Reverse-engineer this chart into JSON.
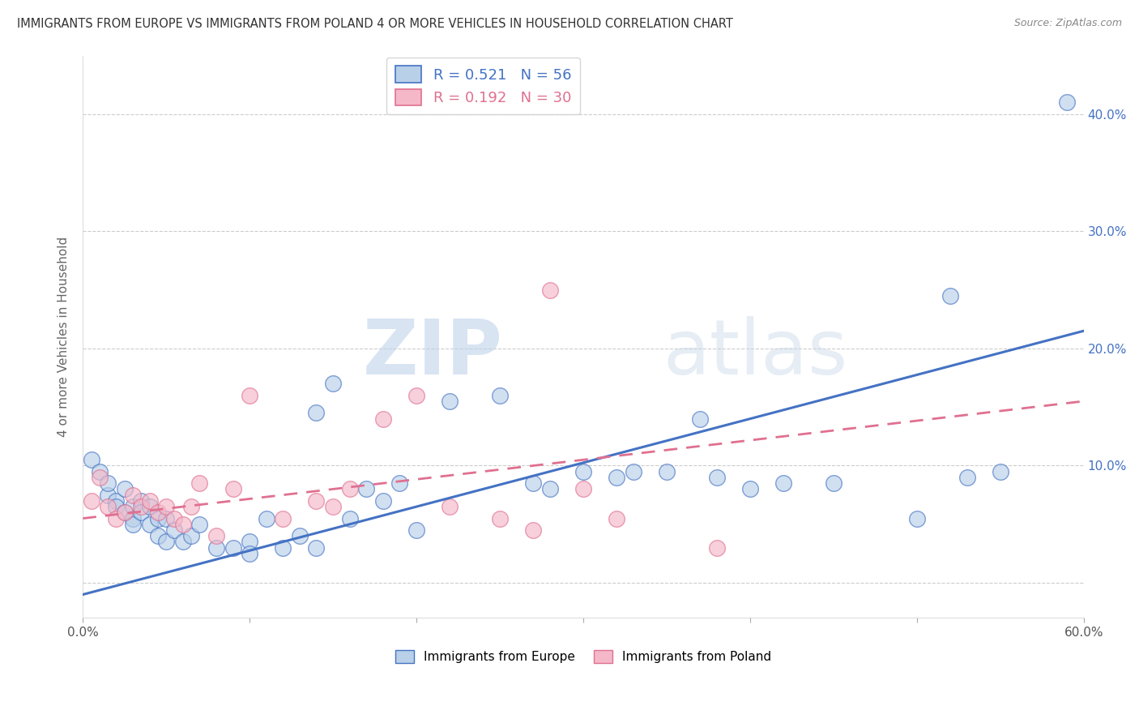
{
  "title": "IMMIGRANTS FROM EUROPE VS IMMIGRANTS FROM POLAND 4 OR MORE VEHICLES IN HOUSEHOLD CORRELATION CHART",
  "source": "Source: ZipAtlas.com",
  "ylabel": "4 or more Vehicles in Household",
  "legend_label_blue": "Immigrants from Europe",
  "legend_label_pink": "Immigrants from Poland",
  "r_blue": "0.521",
  "n_blue": "56",
  "r_pink": "0.192",
  "n_pink": "30",
  "color_blue": "#b8d0e8",
  "color_blue_line": "#4472c4",
  "color_pink": "#f4b8c8",
  "color_pink_line": "#e07090",
  "xlim": [
    0.0,
    0.6
  ],
  "ylim": [
    -0.03,
    0.45
  ],
  "yticks": [
    0.0,
    0.1,
    0.2,
    0.3,
    0.4
  ],
  "ytick_labels": [
    "",
    "10.0%",
    "20.0%",
    "30.0%",
    "40.0%"
  ],
  "blue_x": [
    0.005,
    0.01,
    0.015,
    0.015,
    0.02,
    0.02,
    0.025,
    0.025,
    0.03,
    0.03,
    0.03,
    0.035,
    0.035,
    0.04,
    0.04,
    0.045,
    0.045,
    0.05,
    0.05,
    0.055,
    0.06,
    0.065,
    0.07,
    0.08,
    0.09,
    0.1,
    0.1,
    0.11,
    0.12,
    0.13,
    0.14,
    0.14,
    0.15,
    0.16,
    0.17,
    0.18,
    0.19,
    0.2,
    0.22,
    0.25,
    0.27,
    0.28,
    0.3,
    0.32,
    0.33,
    0.35,
    0.37,
    0.38,
    0.4,
    0.42,
    0.45,
    0.5,
    0.52,
    0.53,
    0.55,
    0.59
  ],
  "blue_y": [
    0.105,
    0.095,
    0.075,
    0.085,
    0.07,
    0.065,
    0.06,
    0.08,
    0.065,
    0.055,
    0.05,
    0.07,
    0.06,
    0.05,
    0.065,
    0.055,
    0.04,
    0.055,
    0.035,
    0.045,
    0.035,
    0.04,
    0.05,
    0.03,
    0.03,
    0.035,
    0.025,
    0.055,
    0.03,
    0.04,
    0.03,
    0.145,
    0.17,
    0.055,
    0.08,
    0.07,
    0.085,
    0.045,
    0.155,
    0.16,
    0.085,
    0.08,
    0.095,
    0.09,
    0.095,
    0.095,
    0.14,
    0.09,
    0.08,
    0.085,
    0.085,
    0.055,
    0.245,
    0.09,
    0.095,
    0.41
  ],
  "pink_x": [
    0.005,
    0.01,
    0.015,
    0.02,
    0.025,
    0.03,
    0.035,
    0.04,
    0.045,
    0.05,
    0.055,
    0.06,
    0.065,
    0.07,
    0.08,
    0.09,
    0.1,
    0.12,
    0.14,
    0.15,
    0.16,
    0.18,
    0.2,
    0.22,
    0.25,
    0.27,
    0.28,
    0.3,
    0.32,
    0.38
  ],
  "pink_y": [
    0.07,
    0.09,
    0.065,
    0.055,
    0.06,
    0.075,
    0.065,
    0.07,
    0.06,
    0.065,
    0.055,
    0.05,
    0.065,
    0.085,
    0.04,
    0.08,
    0.16,
    0.055,
    0.07,
    0.065,
    0.08,
    0.14,
    0.16,
    0.065,
    0.055,
    0.045,
    0.25,
    0.08,
    0.055,
    0.03
  ],
  "blue_line_x": [
    0.0,
    0.6
  ],
  "blue_line_y": [
    -0.01,
    0.215
  ],
  "pink_line_x": [
    0.0,
    0.6
  ],
  "pink_line_y": [
    0.055,
    0.155
  ],
  "watermark_zip": "ZIP",
  "watermark_atlas": "atlas",
  "background_color": "#ffffff",
  "grid_color": "#cccccc"
}
